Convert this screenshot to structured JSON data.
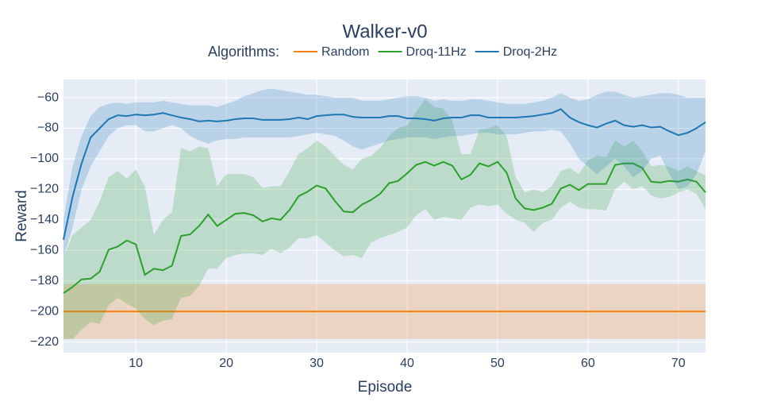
{
  "chart_data": {
    "type": "line",
    "title": "Walker-v0",
    "legend_title": "Algorithms:",
    "xlabel": "Episode",
    "ylabel": "Reward",
    "x": [
      2,
      3,
      4,
      5,
      6,
      7,
      8,
      9,
      10,
      11,
      12,
      13,
      14,
      15,
      16,
      17,
      18,
      19,
      20,
      21,
      22,
      23,
      24,
      25,
      26,
      27,
      28,
      29,
      30,
      31,
      32,
      33,
      34,
      35,
      36,
      37,
      38,
      39,
      40,
      41,
      42,
      43,
      44,
      45,
      46,
      47,
      48,
      49,
      50,
      51,
      52,
      53,
      54,
      55,
      56,
      57,
      58,
      59,
      60,
      61,
      62,
      63,
      64,
      65,
      66,
      67,
      68,
      69,
      70,
      71,
      72,
      73
    ],
    "xlim": [
      2,
      73
    ],
    "xticks": [
      10,
      20,
      30,
      40,
      50,
      60,
      70
    ],
    "ylim": [
      -227,
      -48
    ],
    "yticks": [
      {
        "value": -220,
        "label": "−220"
      },
      {
        "value": -200,
        "label": "−200"
      },
      {
        "value": -180,
        "label": "−180"
      },
      {
        "value": -160,
        "label": "−160"
      },
      {
        "value": -140,
        "label": "−140"
      },
      {
        "value": -120,
        "label": "−120"
      },
      {
        "value": -100,
        "label": "−100"
      },
      {
        "value": -80,
        "label": "−80"
      },
      {
        "value": -60,
        "label": "−60"
      }
    ],
    "grid": true,
    "series": [
      {
        "name": "Random",
        "color": "#ff7f0e",
        "values": [
          -200,
          -200,
          -200,
          -200,
          -200,
          -200,
          -200,
          -200,
          -200,
          -200,
          -200,
          -200,
          -200,
          -200,
          -200,
          -200,
          -200,
          -200,
          -200,
          -200,
          -200,
          -200,
          -200,
          -200,
          -200,
          -200,
          -200,
          -200,
          -200,
          -200,
          -200,
          -200,
          -200,
          -200,
          -200,
          -200,
          -200,
          -200,
          -200,
          -200,
          -200,
          -200,
          -200,
          -200,
          -200,
          -200,
          -200,
          -200,
          -200,
          -200,
          -200,
          -200,
          -200,
          -200,
          -200,
          -200,
          -200,
          -200,
          -200,
          -200,
          -200,
          -200,
          -200,
          -200,
          -200,
          -200,
          -200,
          -200,
          -200,
          -200,
          -200,
          -200
        ],
        "lower": [
          -218,
          -218,
          -218,
          -218,
          -218,
          -218,
          -218,
          -218,
          -218,
          -218,
          -218,
          -218,
          -218,
          -218,
          -218,
          -218,
          -218,
          -218,
          -218,
          -218,
          -218,
          -218,
          -218,
          -218,
          -218,
          -218,
          -218,
          -218,
          -218,
          -218,
          -218,
          -218,
          -218,
          -218,
          -218,
          -218,
          -218,
          -218,
          -218,
          -218,
          -218,
          -218,
          -218,
          -218,
          -218,
          -218,
          -218,
          -218,
          -218,
          -218,
          -218,
          -218,
          -218,
          -218,
          -218,
          -218,
          -218,
          -218,
          -218,
          -218,
          -218,
          -218,
          -218,
          -218,
          -218,
          -218,
          -218,
          -218,
          -218,
          -218,
          -218,
          -218
        ],
        "upper": [
          -182,
          -182,
          -182,
          -182,
          -182,
          -182,
          -182,
          -182,
          -182,
          -182,
          -182,
          -182,
          -182,
          -182,
          -182,
          -182,
          -182,
          -182,
          -182,
          -182,
          -182,
          -182,
          -182,
          -182,
          -182,
          -182,
          -182,
          -182,
          -182,
          -182,
          -182,
          -182,
          -182,
          -182,
          -182,
          -182,
          -182,
          -182,
          -182,
          -182,
          -182,
          -182,
          -182,
          -182,
          -182,
          -182,
          -182,
          -182,
          -182,
          -182,
          -182,
          -182,
          -182,
          -182,
          -182,
          -182,
          -182,
          -182,
          -182,
          -182,
          -182,
          -182,
          -182,
          -182,
          -182,
          -182,
          -182,
          -182,
          -182,
          -182,
          -182,
          -182
        ]
      },
      {
        "name": "Droq-11Hz",
        "color": "#2ca02c",
        "values": [
          -188,
          -184,
          -179,
          -178.5,
          -174,
          -159.5,
          -157.5,
          -153.5,
          -156,
          -176,
          -172,
          -173,
          -170,
          -150.5,
          -149.5,
          -144,
          -136.5,
          -144,
          -140,
          -136,
          -135.5,
          -137,
          -141,
          -139,
          -140,
          -133.5,
          -124.5,
          -121.5,
          -117.5,
          -119.5,
          -127.5,
          -134.5,
          -135,
          -130,
          -127,
          -123,
          -116,
          -114.5,
          -109.5,
          -104,
          -102,
          -104.5,
          -102,
          -104.5,
          -113.5,
          -110.5,
          -103,
          -105,
          -102,
          -109,
          -126,
          -132.5,
          -133.5,
          -132,
          -129.5,
          -119.5,
          -117,
          -120.5,
          -116.5,
          -116.5,
          -116.5,
          -104,
          -103,
          -103,
          -106,
          -115,
          -115.5,
          -114.5,
          -115,
          -113.5,
          -115,
          -122
        ],
        "lower": [
          -218,
          -218,
          -212,
          -207,
          -208,
          -196,
          -191,
          -195,
          -198,
          -205,
          -209,
          -206,
          -205,
          -191,
          -190,
          -183,
          -172,
          -172,
          -165,
          -163,
          -162,
          -162,
          -163,
          -159,
          -162,
          -158,
          -152,
          -152,
          -150,
          -155,
          -160,
          -164,
          -163,
          -165,
          -155,
          -152,
          -150,
          -148,
          -145,
          -137,
          -133,
          -140,
          -138,
          -139,
          -140,
          -132,
          -130,
          -131,
          -130,
          -136,
          -140,
          -142,
          -148,
          -142,
          -140,
          -132,
          -128,
          -132,
          -133,
          -133,
          -134,
          -120,
          -115,
          -120,
          -118,
          -124,
          -126,
          -125,
          -122,
          -120,
          -123,
          -133
        ],
        "upper": [
          -165,
          -150,
          -145,
          -140,
          -128,
          -112,
          -108,
          -113,
          -107,
          -118,
          -150,
          -140,
          -135,
          -93,
          -95,
          -92,
          -93,
          -118,
          -110,
          -110,
          -110,
          -112,
          -119,
          -118,
          -118,
          -108,
          -97,
          -93,
          -88,
          -92,
          -98,
          -104,
          -107,
          -100,
          -98,
          -93,
          -85,
          -80,
          -78,
          -69,
          -61,
          -66,
          -67,
          -75,
          -97,
          -97,
          -81,
          -80,
          -78,
          -85,
          -112,
          -122,
          -120,
          -122,
          -118,
          -108,
          -106,
          -110,
          -101,
          -98,
          -99,
          -88,
          -92,
          -88,
          -95,
          -105,
          -104,
          -105,
          -108,
          -105,
          -108,
          -111
        ]
      },
      {
        "name": "Droq-2Hz",
        "color": "#1f77b4",
        "values": [
          -153,
          -125,
          -103,
          -86,
          -80,
          -74,
          -71.5,
          -72,
          -71,
          -71.5,
          -71,
          -70,
          -71.5,
          -73,
          -74,
          -75.5,
          -75,
          -75.5,
          -75,
          -74,
          -73.5,
          -73.5,
          -74.5,
          -74.5,
          -74.5,
          -74,
          -73,
          -74,
          -72,
          -71.5,
          -71,
          -71,
          -72.5,
          -73,
          -73,
          -73,
          -72,
          -72,
          -73.5,
          -73.5,
          -74,
          -75,
          -73.5,
          -73,
          -73,
          -71.5,
          -71.5,
          -73,
          -73,
          -73,
          -73,
          -72.5,
          -72,
          -71,
          -70,
          -67.5,
          -73,
          -76,
          -78,
          -79.5,
          -77,
          -75,
          -78,
          -79,
          -78,
          -79.5,
          -79,
          -82,
          -84.5,
          -83,
          -80,
          -76
        ],
        "lower": [
          -165,
          -145,
          -120,
          -105,
          -95,
          -85,
          -80,
          -78,
          -78,
          -82,
          -82,
          -80,
          -78,
          -80,
          -85,
          -88,
          -90,
          -88,
          -87,
          -87,
          -86,
          -86,
          -86,
          -86,
          -86,
          -86,
          -85,
          -84,
          -83,
          -84,
          -85,
          -88,
          -92,
          -94,
          -92,
          -90,
          -88,
          -87,
          -86,
          -86,
          -86,
          -87,
          -86,
          -85,
          -85,
          -84,
          -83,
          -83,
          -84,
          -84,
          -84,
          -83,
          -82,
          -82,
          -81,
          -82,
          -90,
          -100,
          -105,
          -110,
          -105,
          -100,
          -105,
          -112,
          -108,
          -100,
          -98,
          -110,
          -120,
          -118,
          -110,
          -95
        ],
        "upper": [
          -140,
          -105,
          -85,
          -72,
          -66,
          -64,
          -63,
          -64,
          -63,
          -63,
          -63,
          -62,
          -63,
          -64,
          -65,
          -65,
          -65,
          -66,
          -64,
          -62,
          -59,
          -57,
          -55,
          -54,
          -55,
          -56,
          -57,
          -58,
          -58,
          -59,
          -60,
          -60,
          -60,
          -62,
          -62,
          -62,
          -61,
          -60,
          -59,
          -59,
          -60,
          -62,
          -61,
          -62,
          -62,
          -61,
          -61,
          -62,
          -63,
          -64,
          -64,
          -64,
          -63,
          -62,
          -60,
          -57,
          -60,
          -62,
          -61,
          -58,
          -56,
          -56,
          -58,
          -60,
          -59,
          -58,
          -57,
          -57,
          -58,
          -60,
          -60,
          -60
        ]
      }
    ]
  }
}
